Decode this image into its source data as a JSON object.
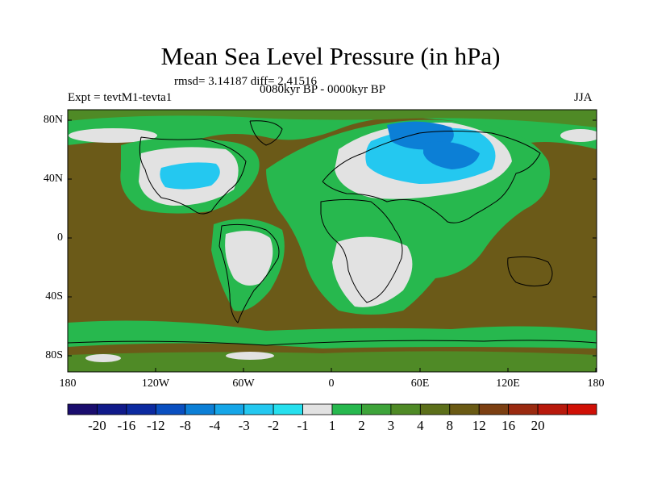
{
  "title": "Mean Sea Level Pressure (in hPa)",
  "stats_line": "rmsd= 3.14187 diff= 2.41516",
  "period_line": "0080kyr BP - 0000kyr BP",
  "experiment_line": "Expt = tevtM1-tevta1",
  "season": "JJA",
  "lat_ticks": [
    "80N",
    "40N",
    "0",
    "40S",
    "80S"
  ],
  "lon_ticks": [
    "180",
    "120W",
    "60W",
    "0",
    "60E",
    "120E",
    "180"
  ],
  "colorbar": {
    "colors": [
      "#1a0d6e",
      "#101a8a",
      "#0c2aa0",
      "#0a4fc0",
      "#0c7fd6",
      "#15a6e8",
      "#24c8f0",
      "#26e0ee",
      "#e2e2e2",
      "#27b84e",
      "#3ea43a",
      "#4f8a26",
      "#5c6f1a",
      "#6a5a14",
      "#7c3f12",
      "#9a2a10",
      "#b8190c",
      "#d01006"
    ],
    "labels": [
      "-20",
      "-16",
      "-12",
      "-8",
      "-4",
      "-3",
      "-2",
      "-1",
      "1",
      "2",
      "3",
      "4",
      "8",
      "12",
      "16",
      "20"
    ]
  },
  "colors": {
    "background_brown": "#6b5a18",
    "green": "#27b84e",
    "dark_green": "#4f8a26",
    "light_gray": "#e2e2e2",
    "light_blue": "#24c8f0",
    "mid_blue": "#0c7fd6"
  }
}
